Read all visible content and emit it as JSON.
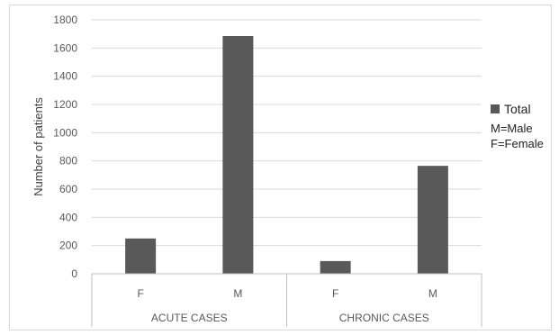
{
  "chart_data": {
    "type": "bar",
    "title": "",
    "xlabel": "",
    "ylabel": "Number of patients",
    "ylim": [
      0,
      1800
    ],
    "yticks": [
      0,
      200,
      400,
      600,
      800,
      1000,
      1200,
      1400,
      1600,
      1800
    ],
    "grid": true,
    "legend_position": "right",
    "groups": [
      {
        "label": "ACUTE CASES",
        "categories": [
          "F",
          "M"
        ]
      },
      {
        "label": "CHRONIC CASES",
        "categories": [
          "F",
          "M"
        ]
      }
    ],
    "categories": [
      "F",
      "M",
      "F",
      "M"
    ],
    "series": [
      {
        "name": "Total",
        "values": [
          250,
          1685,
          90,
          765
        ],
        "color": "#595959"
      }
    ],
    "legend_notes": [
      "M=Male",
      "F=Female"
    ]
  }
}
